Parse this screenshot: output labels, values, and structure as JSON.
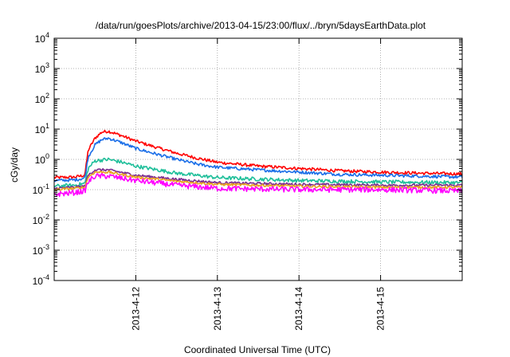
{
  "chart_data": {
    "type": "line",
    "title": "/data/run/goesPlots/archive/2013-04-15/23:00/flux/../bryn/5daysEarthData.plot",
    "xlabel": "Coordinated Universal Time (UTC)",
    "ylabel": "cGy/day",
    "yscale": "log",
    "ylim": [
      0.0001,
      10000
    ],
    "yticks": [
      {
        "base": "10",
        "exp": "-4",
        "value": 0.0001
      },
      {
        "base": "10",
        "exp": "-3",
        "value": 0.001
      },
      {
        "base": "10",
        "exp": "-2",
        "value": 0.01
      },
      {
        "base": "10",
        "exp": "-1",
        "value": 0.1
      },
      {
        "base": "10",
        "exp": "0",
        "value": 1
      },
      {
        "base": "10",
        "exp": "1",
        "value": 10
      },
      {
        "base": "10",
        "exp": "2",
        "value": 100
      },
      {
        "base": "10",
        "exp": "3",
        "value": 1000
      },
      {
        "base": "10",
        "exp": "4",
        "value": 10000
      }
    ],
    "xlim": [
      "2013-04-11 00:00",
      "2013-04-16 00:00"
    ],
    "xticks": [
      "2013-4-12",
      "2013-4-13",
      "2013-4-14",
      "2013-4-15"
    ],
    "grid": true,
    "legend": "none",
    "series": [
      {
        "color": "#ff0000",
        "x": [
          "2013-04-11 00:00",
          "2013-04-11 06:00",
          "2013-04-11 09:00",
          "2013-04-11 10:00",
          "2013-04-11 12:00",
          "2013-04-11 14:00",
          "2013-04-11 16:00",
          "2013-04-11 20:00",
          "2013-04-12 00:00",
          "2013-04-12 06:00",
          "2013-04-12 12:00",
          "2013-04-12 18:00",
          "2013-04-13 00:00",
          "2013-04-13 12:00",
          "2013-04-14 00:00",
          "2013-04-14 12:00",
          "2013-04-15 00:00",
          "2013-04-15 12:00",
          "2013-04-16 00:00"
        ],
        "y": [
          0.25,
          0.26,
          0.3,
          2.0,
          5.0,
          8.0,
          8.5,
          6.0,
          4.0,
          2.5,
          1.6,
          1.1,
          0.8,
          0.6,
          0.5,
          0.42,
          0.38,
          0.35,
          0.33
        ]
      },
      {
        "color": "#1a6ee8",
        "x": [
          "2013-04-11 00:00",
          "2013-04-11 06:00",
          "2013-04-11 09:00",
          "2013-04-11 10:00",
          "2013-04-11 12:00",
          "2013-04-11 14:00",
          "2013-04-11 16:00",
          "2013-04-11 20:00",
          "2013-04-12 00:00",
          "2013-04-12 06:00",
          "2013-04-12 12:00",
          "2013-04-12 18:00",
          "2013-04-13 00:00",
          "2013-04-13 12:00",
          "2013-04-14 00:00",
          "2013-04-14 12:00",
          "2013-04-15 00:00",
          "2013-04-15 12:00",
          "2013-04-16 00:00"
        ],
        "y": [
          0.2,
          0.21,
          0.24,
          1.2,
          3.0,
          4.5,
          5.0,
          3.5,
          2.3,
          1.5,
          1.0,
          0.7,
          0.55,
          0.45,
          0.38,
          0.32,
          0.3,
          0.28,
          0.26
        ]
      },
      {
        "color": "#1fbf9a",
        "x": [
          "2013-04-11 00:00",
          "2013-04-11 06:00",
          "2013-04-11 09:00",
          "2013-04-11 10:00",
          "2013-04-11 12:00",
          "2013-04-11 16:00",
          "2013-04-11 20:00",
          "2013-04-12 00:00",
          "2013-04-12 12:00",
          "2013-04-13 00:00",
          "2013-04-14 00:00",
          "2013-04-15 00:00",
          "2013-04-16 00:00"
        ],
        "y": [
          0.13,
          0.14,
          0.16,
          0.5,
          0.9,
          1.0,
          0.8,
          0.6,
          0.35,
          0.25,
          0.2,
          0.18,
          0.17
        ]
      },
      {
        "color": "#7a2b8f",
        "x": [
          "2013-04-11 00:00",
          "2013-04-11 06:00",
          "2013-04-11 09:00",
          "2013-04-11 10:00",
          "2013-04-11 12:00",
          "2013-04-11 16:00",
          "2013-04-12 00:00",
          "2013-04-12 12:00",
          "2013-04-13 00:00",
          "2013-04-14 00:00",
          "2013-04-15 00:00",
          "2013-04-16 00:00"
        ],
        "y": [
          0.11,
          0.12,
          0.13,
          0.3,
          0.45,
          0.45,
          0.3,
          0.22,
          0.17,
          0.15,
          0.14,
          0.14
        ]
      },
      {
        "color": "#e8a020",
        "x": [
          "2013-04-11 00:00",
          "2013-04-11 06:00",
          "2013-04-11 09:00",
          "2013-04-11 10:00",
          "2013-04-11 12:00",
          "2013-04-11 16:00",
          "2013-04-12 00:00",
          "2013-04-12 12:00",
          "2013-04-13 00:00",
          "2013-04-14 00:00",
          "2013-04-15 00:00",
          "2013-04-16 00:00"
        ],
        "y": [
          0.1,
          0.11,
          0.12,
          0.26,
          0.38,
          0.38,
          0.26,
          0.19,
          0.15,
          0.13,
          0.12,
          0.12
        ]
      },
      {
        "color": "#ff00ff",
        "x": [
          "2013-04-11 00:00",
          "2013-04-11 06:00",
          "2013-04-11 09:00",
          "2013-04-11 10:00",
          "2013-04-11 12:00",
          "2013-04-11 16:00",
          "2013-04-12 00:00",
          "2013-04-12 12:00",
          "2013-04-13 00:00",
          "2013-04-14 00:00",
          "2013-04-15 00:00",
          "2013-04-16 00:00"
        ],
        "y": [
          0.07,
          0.08,
          0.09,
          0.18,
          0.28,
          0.28,
          0.2,
          0.14,
          0.11,
          0.1,
          0.1,
          0.09
        ]
      }
    ]
  }
}
